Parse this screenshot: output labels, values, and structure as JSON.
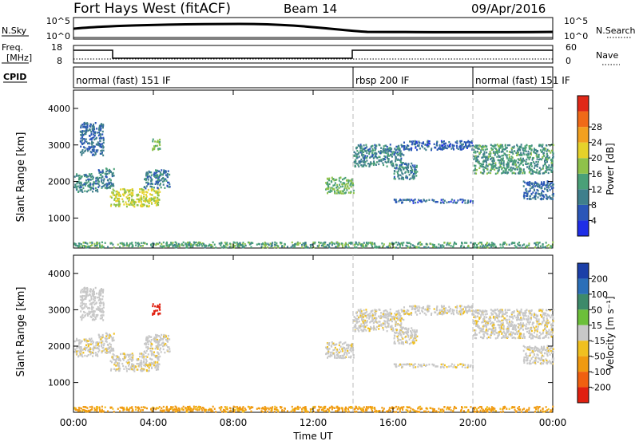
{
  "header": {
    "radar": "Fort Hays West (fitACF)",
    "beam": "Beam 14",
    "date": "09/Apr/2016"
  },
  "top_panels": {
    "nsky_label": "N.Sky",
    "nsky_ticks": [
      "10^5",
      "10^0"
    ],
    "nsearch_label": "N.Search",
    "nsearch_ticks": [
      "10^5",
      "10^0"
    ],
    "freq_label_1": "Freq.",
    "freq_label_2": "[MHz]",
    "freq_ticks": [
      "18",
      "8"
    ],
    "nave_label": "Nave",
    "nave_ticks": [
      "60",
      "0"
    ],
    "cpid_label": "CPID",
    "cpid_segments": [
      {
        "label": "normal (fast) 151 IF",
        "start_h": 0,
        "end_h": 14
      },
      {
        "label": "rbsp 200 IF",
        "start_h": 14,
        "end_h": 20
      },
      {
        "label": "normal (fast) 151 IF",
        "start_h": 20,
        "end_h": 24
      }
    ]
  },
  "axes": {
    "ylabel": "Slant Range [km]",
    "yticks": [
      "1000",
      "2000",
      "3000",
      "4000"
    ],
    "xlabel": "Time UT",
    "xticks": [
      "00:00",
      "04:00",
      "08:00",
      "12:00",
      "16:00",
      "20:00",
      "00:00"
    ]
  },
  "power_scale": {
    "label": "Power [dB]",
    "ticks": [
      "4",
      "8",
      "12",
      "16",
      "20",
      "24",
      "28"
    ],
    "colors": [
      "#1f2ee6",
      "#2a56b8",
      "#3f7f8c",
      "#4aa078",
      "#8fc24a",
      "#e6d22a",
      "#f2a020",
      "#f06a18",
      "#e02818"
    ]
  },
  "velocity_scale": {
    "label": "Velocity [m s⁻¹]",
    "ticks": [
      "200",
      "100",
      "50",
      "15",
      "-15",
      "-50",
      "-100",
      "-200"
    ],
    "colors": [
      "#1b3fa8",
      "#2b6fb8",
      "#3d8a6a",
      "#6cbf3a",
      "#c8c8c8",
      "#f0c020",
      "#f09a10",
      "#f06010",
      "#e02010"
    ]
  },
  "chart_data": {
    "type": "heatmap",
    "x_range_hours": [
      0,
      24
    ],
    "y_range_km": [
      180,
      4500
    ],
    "mode_changes_hours": [
      14,
      20
    ],
    "panels": [
      "Power",
      "Velocity"
    ],
    "echo_regions": [
      {
        "t0": 0.0,
        "t1": 1.2,
        "r0": 1700,
        "r1": 2200,
        "power": 9,
        "velocity": -5
      },
      {
        "t0": 1.2,
        "t1": 2.0,
        "r0": 1800,
        "r1": 2350,
        "power": 8,
        "velocity": -5
      },
      {
        "t0": 1.8,
        "t1": 4.3,
        "r0": 1300,
        "r1": 1800,
        "power": 18,
        "velocity": -5
      },
      {
        "t0": 3.5,
        "t1": 4.8,
        "r0": 1800,
        "r1": 2300,
        "power": 8,
        "velocity": -5
      },
      {
        "t0": 3.9,
        "t1": 4.3,
        "r0": 2850,
        "r1": 3150,
        "power": 14,
        "velocity": -180
      },
      {
        "t0": 0.3,
        "t1": 1.5,
        "r0": 2700,
        "r1": 3600,
        "power": 6,
        "velocity": 0
      },
      {
        "t0": 12.6,
        "t1": 14.0,
        "r0": 1650,
        "r1": 2100,
        "power": 14,
        "velocity": -5
      },
      {
        "t0": 14.0,
        "t1": 16.5,
        "r0": 2400,
        "r1": 3000,
        "power": 9,
        "velocity": -5
      },
      {
        "t0": 16.0,
        "t1": 17.2,
        "r0": 2050,
        "r1": 2500,
        "power": 9,
        "velocity": -5
      },
      {
        "t0": 16.5,
        "t1": 20.0,
        "r0": 2850,
        "r1": 3100,
        "power": 5,
        "velocity": -5
      },
      {
        "t0": 16.0,
        "t1": 20.0,
        "r0": 1400,
        "r1": 1500,
        "power": 5,
        "velocity": -5
      },
      {
        "t0": 20.0,
        "t1": 24.0,
        "r0": 2200,
        "r1": 3000,
        "power": 11,
        "velocity": -5
      },
      {
        "t0": 22.5,
        "t1": 24.0,
        "r0": 1500,
        "r1": 2000,
        "power": 6,
        "velocity": -5
      },
      {
        "t0": 0.0,
        "t1": 24.0,
        "r0": 180,
        "r1": 330,
        "power": 12,
        "velocity": -40
      }
    ]
  }
}
